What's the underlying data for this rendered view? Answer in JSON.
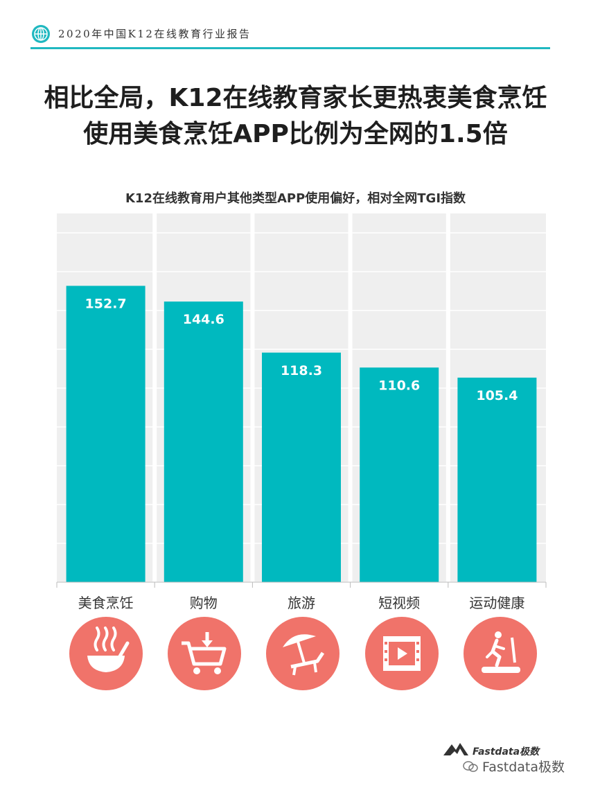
{
  "header": {
    "report_title": "2020年中国K12在线教育行业报告",
    "globe_icon": "globe-icon",
    "accent_color": "#1fb8c0"
  },
  "title": {
    "line1": "相比全局，K12在线教育家长更热衷美食烹饪",
    "line2": "使用美食烹饪APP比例为全网的1.5倍"
  },
  "chart_data": {
    "type": "bar",
    "title": "K12在线教育用户其他类型APP使用偏好，相对全网TGI指数",
    "categories": [
      "美食烹饪",
      "购物",
      "旅游",
      "短视频",
      "运动健康"
    ],
    "values": [
      152.7,
      144.6,
      118.3,
      110.6,
      105.4
    ],
    "value_labels": [
      "152.7",
      "144.6",
      "118.3",
      "110.6",
      "105.4"
    ],
    "ylim": [
      0,
      190
    ],
    "grid": true,
    "legend": "none",
    "bar_color": "#00b9bf",
    "panel_color": "#efefef"
  },
  "category_icons": [
    {
      "name": "soup-bowl-icon",
      "color": "#f0736a"
    },
    {
      "name": "shopping-cart-icon",
      "color": "#f0736a"
    },
    {
      "name": "beach-umbrella-icon",
      "color": "#f0736a"
    },
    {
      "name": "video-film-icon",
      "color": "#f0736a"
    },
    {
      "name": "treadmill-runner-icon",
      "color": "#f0736a"
    }
  ],
  "brand": {
    "logo_text": "Fastdata极数",
    "watermark": "Fastdata极数",
    "wechat_icon": "wechat-icon"
  }
}
